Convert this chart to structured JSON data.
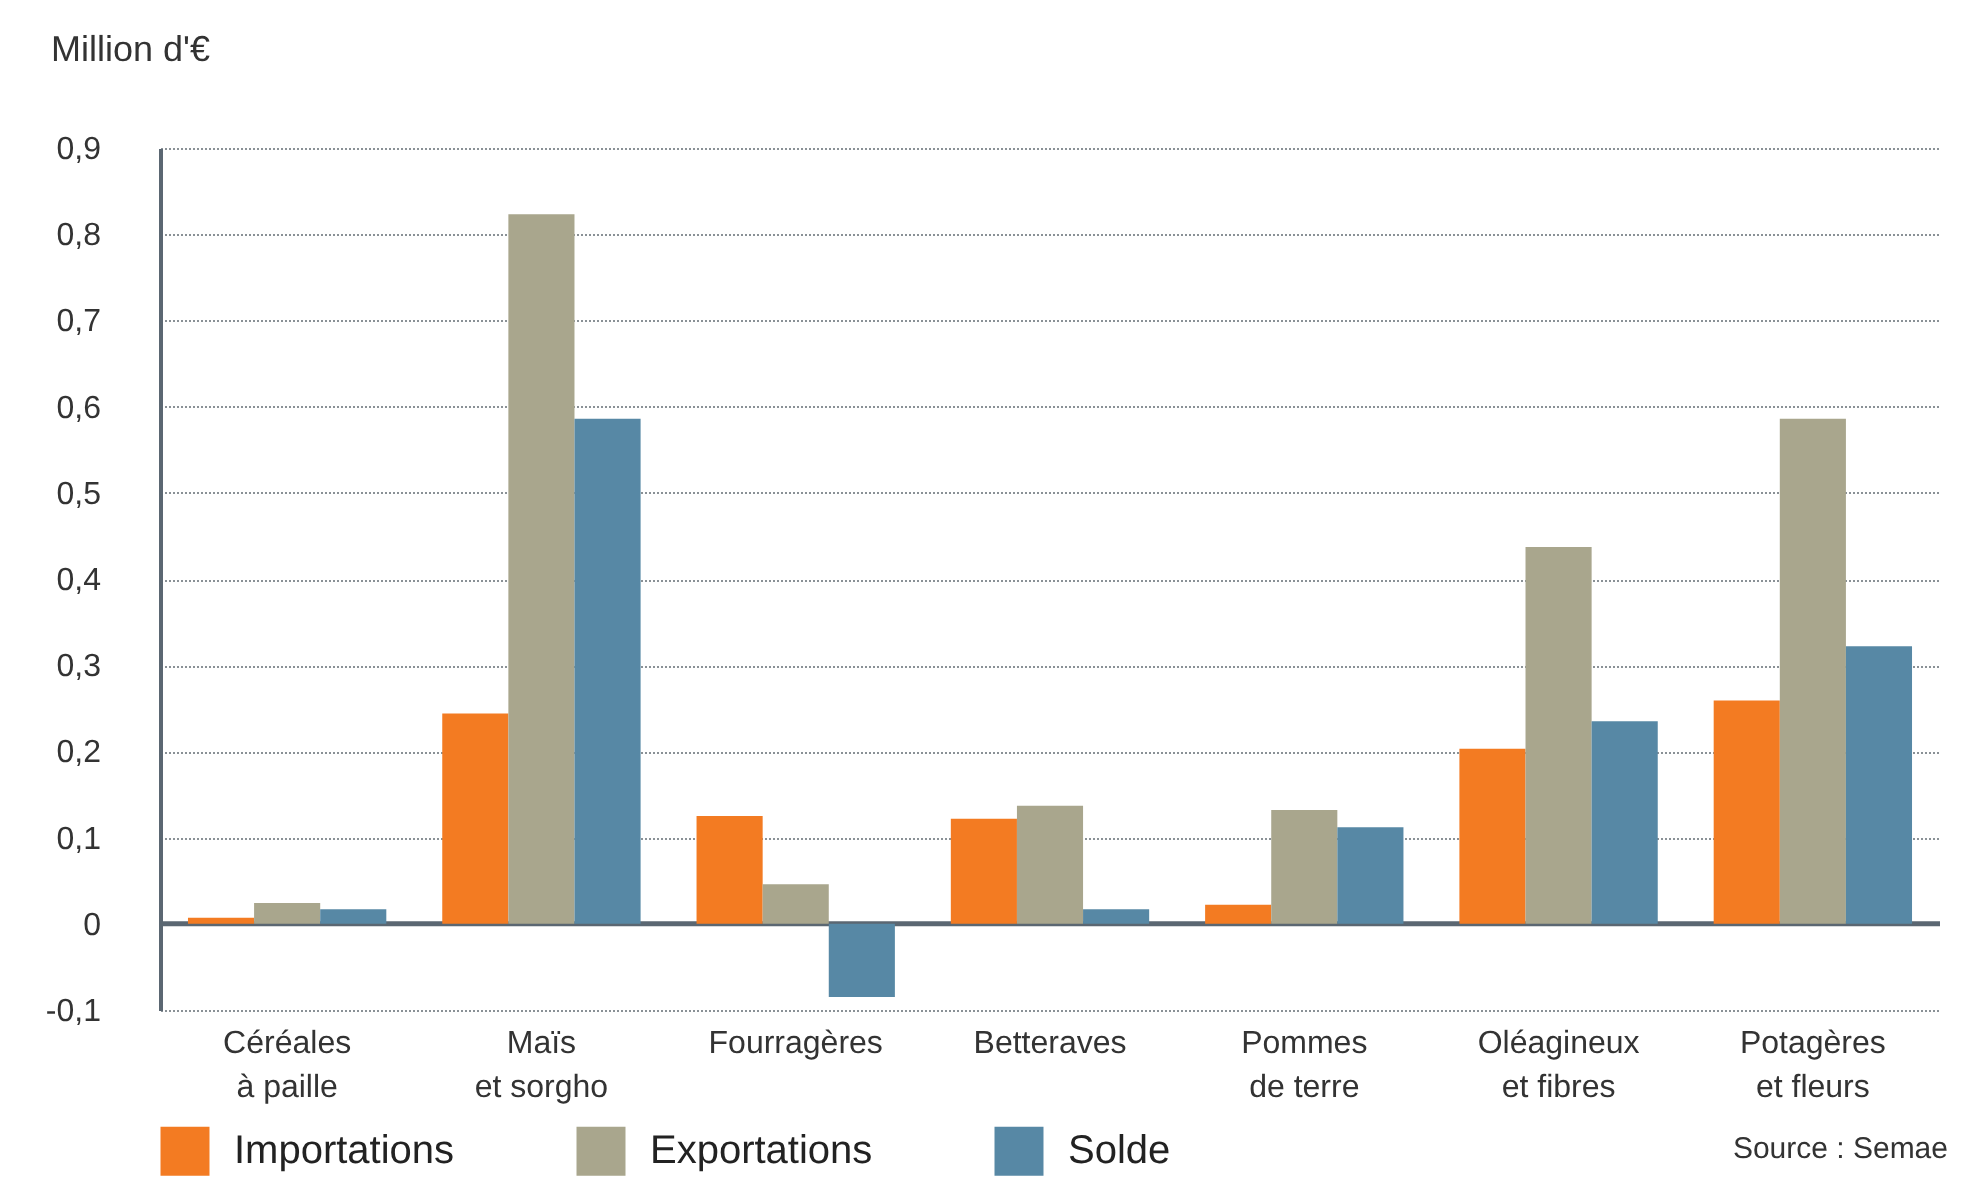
{
  "chart_data": {
    "type": "bar",
    "ylabel": "Million d'€",
    "categories": [
      "Céréales\nà paille",
      "Maïs\net sorgho",
      "Fourragères",
      "Betteraves",
      "Pommes\nde terre",
      "Oléagineux\net fibres",
      "Potagères\net fleurs"
    ],
    "series": [
      {
        "name": "Importations",
        "color": "#f37b22",
        "values": [
          0.007,
          0.244,
          0.125,
          0.122,
          0.022,
          0.203,
          0.259
        ]
      },
      {
        "name": "Exportations",
        "color": "#a9a68d",
        "values": [
          0.024,
          0.823,
          0.046,
          0.137,
          0.132,
          0.437,
          0.586
        ]
      },
      {
        "name": "Solde",
        "color": "#5788a5",
        "values": [
          0.017,
          0.586,
          -0.085,
          0.017,
          0.112,
          0.235,
          0.322
        ]
      }
    ],
    "ylim": [
      -0.1,
      0.9
    ],
    "yticks": [
      {
        "value": -0.1,
        "label": "-0,1"
      },
      0,
      {
        "value": 0.1,
        "label": "0,1"
      },
      {
        "value": 0.2,
        "label": "0,2"
      },
      {
        "value": 0.3,
        "label": "0,3"
      },
      {
        "value": 0.4,
        "label": "0,4"
      },
      {
        "value": 0.5,
        "label": "0,5"
      },
      {
        "value": 0.6,
        "label": "0,6"
      },
      {
        "value": 0.7,
        "label": "0,7"
      },
      {
        "value": 0.8,
        "label": "0,8"
      },
      {
        "value": 0.9,
        "label": "0,9"
      }
    ],
    "ref_lines": [
      {
        "axis": "y",
        "value": 0,
        "color": "#5b6772"
      }
    ],
    "grid": "y",
    "legend": "bottom",
    "annotations": [
      "Source : Semae"
    ]
  }
}
